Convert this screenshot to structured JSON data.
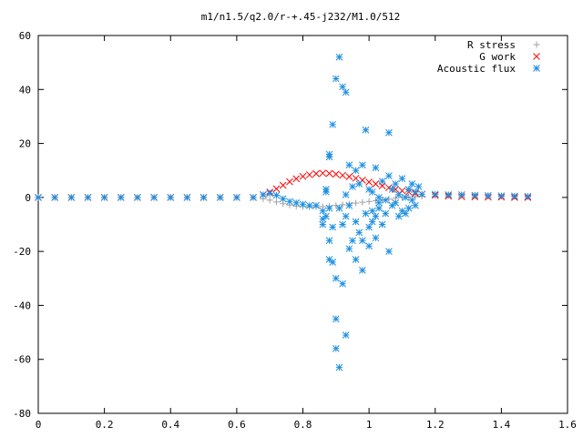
{
  "chart_data": {
    "type": "scatter",
    "title": "m1/n1.5/q2.0/r-+.45-j232/M1.0/512",
    "xlabel": "",
    "ylabel": "",
    "xlim": [
      0,
      1.6
    ],
    "ylim": [
      -80,
      60
    ],
    "x_ticks": [
      0,
      0.2,
      0.4,
      0.6,
      0.8,
      1,
      1.2,
      1.4,
      1.6
    ],
    "x_tick_labels": [
      "0",
      "0.2",
      "0.4",
      "0.6",
      "0.8",
      "1",
      "1.2",
      "1.4",
      "1.6"
    ],
    "y_ticks": [
      -80,
      -60,
      -40,
      -20,
      0,
      20,
      40,
      60
    ],
    "y_tick_labels": [
      "-80",
      "-60",
      "-40",
      "-20",
      "0",
      "20",
      "40",
      "60"
    ],
    "grid": false,
    "legend_position": "top-right",
    "series": [
      {
        "name": "R stress",
        "marker": "plus",
        "color": "#a0a0a0",
        "points": [
          [
            0.0,
            0
          ],
          [
            0.05,
            0
          ],
          [
            0.1,
            0
          ],
          [
            0.15,
            0
          ],
          [
            0.2,
            0
          ],
          [
            0.25,
            0
          ],
          [
            0.3,
            0
          ],
          [
            0.35,
            0
          ],
          [
            0.4,
            0
          ],
          [
            0.45,
            0
          ],
          [
            0.5,
            0
          ],
          [
            0.55,
            0
          ],
          [
            0.6,
            0
          ],
          [
            0.65,
            0
          ],
          [
            0.68,
            -0.5
          ],
          [
            0.7,
            -1.0
          ],
          [
            0.72,
            -1.7
          ],
          [
            0.74,
            -2.3
          ],
          [
            0.76,
            -2.8
          ],
          [
            0.78,
            -3.2
          ],
          [
            0.8,
            -3.4
          ],
          [
            0.82,
            -3.5
          ],
          [
            0.84,
            -3.5
          ],
          [
            0.86,
            -3.4
          ],
          [
            0.88,
            -3.2
          ],
          [
            0.9,
            -3.0
          ],
          [
            0.92,
            -2.7
          ],
          [
            0.94,
            -2.4
          ],
          [
            0.96,
            -2.1
          ],
          [
            0.98,
            -1.8
          ],
          [
            1.0,
            -1.5
          ],
          [
            1.02,
            -1.2
          ],
          [
            1.04,
            -0.9
          ],
          [
            1.06,
            -0.6
          ],
          [
            1.08,
            -0.3
          ],
          [
            1.1,
            0
          ],
          [
            1.12,
            0.2
          ],
          [
            1.14,
            0.3
          ],
          [
            1.16,
            0.4
          ],
          [
            1.2,
            0.6
          ],
          [
            1.24,
            0.7
          ],
          [
            1.28,
            0.7
          ],
          [
            1.32,
            0.6
          ],
          [
            1.36,
            0.5
          ],
          [
            1.4,
            0.4
          ],
          [
            1.44,
            0.3
          ],
          [
            1.48,
            0.2
          ]
        ]
      },
      {
        "name": "G work",
        "marker": "cross",
        "color": "#ff0000",
        "points": [
          [
            0.0,
            0
          ],
          [
            0.05,
            0
          ],
          [
            0.1,
            0
          ],
          [
            0.15,
            0
          ],
          [
            0.2,
            0
          ],
          [
            0.25,
            0
          ],
          [
            0.3,
            0
          ],
          [
            0.35,
            0
          ],
          [
            0.4,
            0
          ],
          [
            0.45,
            0
          ],
          [
            0.5,
            0
          ],
          [
            0.55,
            0
          ],
          [
            0.6,
            0
          ],
          [
            0.65,
            0
          ],
          [
            0.68,
            1.0
          ],
          [
            0.7,
            2.0
          ],
          [
            0.72,
            3.2
          ],
          [
            0.74,
            4.5
          ],
          [
            0.76,
            5.8
          ],
          [
            0.78,
            6.9
          ],
          [
            0.8,
            7.8
          ],
          [
            0.82,
            8.4
          ],
          [
            0.84,
            8.8
          ],
          [
            0.86,
            9.0
          ],
          [
            0.88,
            8.9
          ],
          [
            0.9,
            8.6
          ],
          [
            0.92,
            8.2
          ],
          [
            0.94,
            7.7
          ],
          [
            0.96,
            7.1
          ],
          [
            0.98,
            6.4
          ],
          [
            1.0,
            5.7
          ],
          [
            1.02,
            5.0
          ],
          [
            1.04,
            4.3
          ],
          [
            1.06,
            3.6
          ],
          [
            1.08,
            3.0
          ],
          [
            1.1,
            2.5
          ],
          [
            1.12,
            2.0
          ],
          [
            1.14,
            1.5
          ],
          [
            1.16,
            1.2
          ],
          [
            1.2,
            0.8
          ],
          [
            1.24,
            0.5
          ],
          [
            1.28,
            0.3
          ],
          [
            1.32,
            0.2
          ],
          [
            1.36,
            0.1
          ],
          [
            1.4,
            0.1
          ],
          [
            1.44,
            0
          ],
          [
            1.48,
            0
          ]
        ]
      },
      {
        "name": "Acoustic flux",
        "marker": "star",
        "color": "#1e8fe0",
        "points": [
          [
            0.0,
            0
          ],
          [
            0.05,
            0
          ],
          [
            0.1,
            0
          ],
          [
            0.15,
            0
          ],
          [
            0.2,
            0
          ],
          [
            0.25,
            0
          ],
          [
            0.3,
            0
          ],
          [
            0.35,
            0
          ],
          [
            0.4,
            0
          ],
          [
            0.45,
            0
          ],
          [
            0.5,
            0
          ],
          [
            0.55,
            0
          ],
          [
            0.6,
            0
          ],
          [
            0.65,
            0
          ],
          [
            0.68,
            1
          ],
          [
            0.7,
            1.5
          ],
          [
            0.72,
            0.8
          ],
          [
            0.74,
            -0.5
          ],
          [
            0.76,
            -1.5
          ],
          [
            0.78,
            -2
          ],
          [
            0.8,
            -2.5
          ],
          [
            0.82,
            -3
          ],
          [
            0.84,
            -3
          ],
          [
            0.86,
            -5
          ],
          [
            0.86,
            -8
          ],
          [
            0.86,
            -10
          ],
          [
            0.87,
            2
          ],
          [
            0.87,
            3
          ],
          [
            0.87,
            -7
          ],
          [
            0.88,
            -4
          ],
          [
            0.88,
            -16
          ],
          [
            0.88,
            -23
          ],
          [
            0.88,
            15
          ],
          [
            0.88,
            16
          ],
          [
            0.89,
            -24
          ],
          [
            0.89,
            -11
          ],
          [
            0.89,
            27
          ],
          [
            0.9,
            -30
          ],
          [
            0.9,
            -45
          ],
          [
            0.9,
            -56
          ],
          [
            0.9,
            44
          ],
          [
            0.91,
            -63
          ],
          [
            0.91,
            52
          ],
          [
            0.91,
            -4
          ],
          [
            0.92,
            -10
          ],
          [
            0.92,
            41
          ],
          [
            0.92,
            -32
          ],
          [
            0.93,
            -51
          ],
          [
            0.93,
            39
          ],
          [
            0.93,
            -7
          ],
          [
            0.93,
            1
          ],
          [
            0.94,
            -3
          ],
          [
            0.94,
            -19
          ],
          [
            0.94,
            12
          ],
          [
            0.95,
            -16
          ],
          [
            0.95,
            4
          ],
          [
            0.96,
            -23
          ],
          [
            0.96,
            -9
          ],
          [
            0.96,
            10
          ],
          [
            0.97,
            -13
          ],
          [
            0.97,
            5
          ],
          [
            0.98,
            -27
          ],
          [
            0.98,
            -16
          ],
          [
            0.98,
            12
          ],
          [
            0.99,
            25
          ],
          [
            0.99,
            -6
          ],
          [
            1.0,
            -18
          ],
          [
            1.0,
            -11
          ],
          [
            1.0,
            3
          ],
          [
            1.01,
            -9
          ],
          [
            1.01,
            -5
          ],
          [
            1.01,
            2
          ],
          [
            1.02,
            -7
          ],
          [
            1.02,
            11
          ],
          [
            1.02,
            -15
          ],
          [
            1.03,
            -4
          ],
          [
            1.03,
            0
          ],
          [
            1.03,
            -2
          ],
          [
            1.04,
            -10
          ],
          [
            1.04,
            6
          ],
          [
            1.05,
            -1
          ],
          [
            1.05,
            -6
          ],
          [
            1.06,
            24
          ],
          [
            1.06,
            -20
          ],
          [
            1.06,
            8
          ],
          [
            1.07,
            -3
          ],
          [
            1.07,
            3
          ],
          [
            1.08,
            -2
          ],
          [
            1.08,
            5
          ],
          [
            1.09,
            -7
          ],
          [
            1.09,
            1
          ],
          [
            1.1,
            -5
          ],
          [
            1.1,
            7
          ],
          [
            1.11,
            -6
          ],
          [
            1.11,
            0
          ],
          [
            1.12,
            3
          ],
          [
            1.12,
            -4
          ],
          [
            1.13,
            5
          ],
          [
            1.13,
            -1
          ],
          [
            1.14,
            -3
          ],
          [
            1.14,
            2
          ],
          [
            1.15,
            4
          ],
          [
            1.16,
            1.2
          ],
          [
            1.2,
            1.2
          ],
          [
            1.24,
            1.0
          ],
          [
            1.28,
            1.0
          ],
          [
            1.32,
            0.8
          ],
          [
            1.36,
            0.7
          ],
          [
            1.4,
            0.6
          ],
          [
            1.44,
            0.5
          ],
          [
            1.48,
            0.4
          ]
        ]
      }
    ]
  }
}
